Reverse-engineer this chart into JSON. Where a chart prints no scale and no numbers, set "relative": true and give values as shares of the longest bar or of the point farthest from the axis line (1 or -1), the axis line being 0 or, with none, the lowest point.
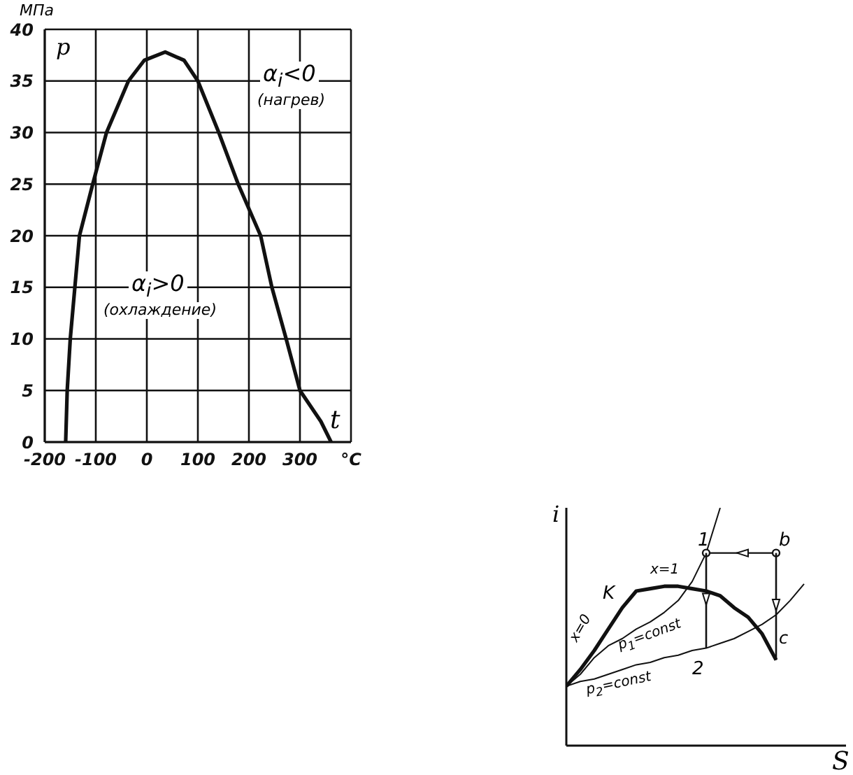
{
  "chart_data": [
    {
      "type": "line",
      "ylabel": "p",
      "xlabel": "t",
      "annotations": [
        "МПа",
        "α$_{i}$<0",
        "(нагрев)",
        "α$_{i}$>0",
        "(охлаждение)"
      ],
      "x": [
        -159,
        -156,
        -150,
        -141,
        -132,
        -106,
        -79,
        -36,
        -5,
        36,
        73,
        100,
        141,
        179,
        223,
        245,
        273,
        300,
        341,
        361
      ],
      "series": [
        {
          "color": "#111111",
          "values": [
            0,
            5,
            10,
            15,
            20,
            25,
            30,
            35,
            37,
            37.8,
            37,
            35,
            30,
            25,
            20,
            15,
            10,
            5,
            2,
            0
          ]
        }
      ],
      "xlim": [
        -200,
        400
      ],
      "ylim": [
        0,
        40
      ],
      "xticks": [
        -200,
        -100,
        0,
        100,
        200,
        300,
        {
          "value": 400,
          "label": "°C"
        }
      ],
      "yticks": [
        0,
        5,
        10,
        15,
        20,
        25,
        30,
        35,
        40
      ],
      "grid": true
    },
    {
      "type": "line",
      "relative": true,
      "xlabel": "S",
      "ylabel": "i",
      "annotations": [
        "1",
        "b",
        "x=1",
        "K",
        "x=0",
        "p$_{1}$=const",
        "2",
        "c",
        "p$_{2}$=const"
      ],
      "categories": [
        null,
        null,
        null,
        null,
        null,
        null,
        null,
        null,
        null,
        null,
        null,
        null,
        null,
        null,
        null,
        null,
        null,
        null,
        null,
        null,
        null
      ],
      "series": [
        {
          "color": "#111111",
          "values": [
            0.25,
            0.32,
            0.4,
            0.49,
            0.58,
            0.65,
            0.66,
            0.67,
            0.67,
            0.66,
            0.65,
            0.63,
            0.58,
            0.54,
            0.47,
            0.36,
            null,
            null,
            null,
            null,
            null
          ]
        },
        {
          "color": "#111111",
          "values": [
            0.25,
            0.3,
            0.37,
            0.42,
            0.45,
            0.49,
            0.52,
            0.56,
            0.61,
            0.69,
            0.81,
            1.0,
            null,
            null,
            null,
            null,
            null,
            null,
            null,
            null,
            null
          ]
        },
        {
          "color": "#111111",
          "values": [
            0.25,
            0.27,
            0.28,
            0.3,
            0.32,
            0.34,
            0.35,
            0.37,
            0.38,
            0.4,
            0.41,
            0.43,
            0.45,
            0.48,
            0.51,
            0.55,
            0.61,
            0.68,
            null,
            null,
            null
          ]
        },
        {
          "color": "#111111",
          "marker": "circle",
          "values": [
            null,
            null,
            null,
            null,
            null,
            null,
            null,
            null,
            null,
            null,
            0.81,
            null,
            null,
            null,
            null,
            0.81,
            null,
            null,
            null,
            null,
            null
          ]
        }
      ]
    }
  ]
}
